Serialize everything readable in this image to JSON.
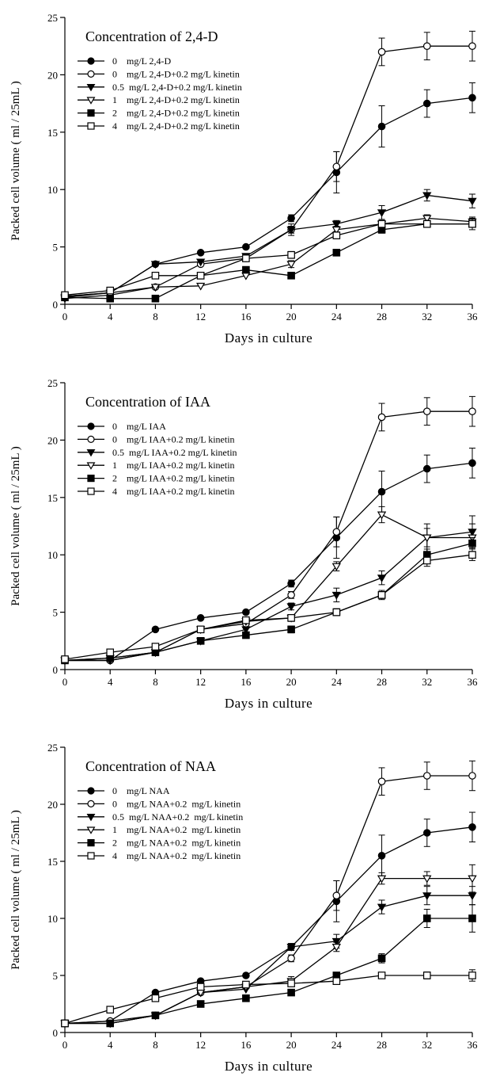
{
  "colors": {
    "ink": "#000000",
    "background": "#ffffff"
  },
  "chart_data": [
    {
      "type": "line",
      "title": "Concentration of 2,4-D",
      "xlabel": "Days in culture",
      "ylabel": "Packed cell volume ( ml / 25mL )",
      "xlim": [
        0,
        36
      ],
      "ylim": [
        0,
        25
      ],
      "xticks": [
        0,
        4,
        8,
        12,
        16,
        20,
        24,
        28,
        32,
        36
      ],
      "yticks": [
        0,
        5,
        10,
        15,
        20,
        25
      ],
      "grid": false,
      "legend_position": "top-left",
      "x": [
        0,
        4,
        8,
        12,
        16,
        20,
        24,
        28,
        32,
        36
      ],
      "series": [
        {
          "name": "0    mg/L 2,4-D",
          "marker": "circle-filled",
          "values": [
            0.7,
            1.0,
            3.5,
            4.5,
            5.0,
            7.5,
            11.5,
            15.5,
            17.5,
            18.0
          ],
          "errors": [
            0.2,
            0.2,
            0.2,
            0.2,
            0.2,
            0.3,
            1.8,
            1.8,
            1.2,
            1.3
          ]
        },
        {
          "name": "0    mg/L 2,4-D+0.2 mg/L kinetin",
          "marker": "circle-open",
          "values": [
            0.7,
            1.0,
            1.5,
            3.5,
            4.0,
            6.5,
            12.0,
            22.0,
            22.5,
            22.5
          ],
          "errors": [
            0.2,
            0.2,
            0.2,
            0.2,
            0.2,
            0.3,
            1.3,
            1.2,
            1.2,
            1.3
          ]
        },
        {
          "name": "0.5  mg/L 2,4-D+0.2 mg/L kinetin",
          "marker": "triangle-down-filled",
          "values": [
            0.6,
            1.0,
            3.5,
            3.7,
            4.2,
            6.5,
            7.0,
            8.0,
            9.5,
            9.0
          ],
          "errors": [
            0.2,
            0.2,
            0.2,
            0.2,
            0.2,
            0.5,
            0.3,
            0.6,
            0.5,
            0.6
          ]
        },
        {
          "name": "1    mg/L 2,4-D+0.2 mg/L kinetin",
          "marker": "triangle-down-open",
          "values": [
            0.5,
            0.8,
            1.5,
            1.6,
            2.5,
            3.5,
            6.5,
            7.0,
            7.5,
            7.2
          ],
          "errors": [
            0.2,
            0.2,
            0.2,
            0.2,
            0.2,
            0.3,
            0.3,
            0.3,
            0.3,
            0.4
          ]
        },
        {
          "name": "2    mg/L 2,4-D+0.2 mg/L kinetin",
          "marker": "square-filled",
          "values": [
            0.6,
            0.5,
            0.5,
            2.5,
            3.0,
            2.5,
            4.5,
            6.5,
            7.0,
            7.0
          ],
          "errors": [
            0.2,
            0.2,
            0.2,
            0.2,
            0.2,
            0.2,
            0.2,
            0.3,
            0.3,
            0.5
          ]
        },
        {
          "name": "4    mg/L 2,4-D+0.2 mg/L kinetin",
          "marker": "square-open",
          "values": [
            0.8,
            1.2,
            2.5,
            2.5,
            4.0,
            4.3,
            6.0,
            7.0,
            7.0,
            7.0
          ],
          "errors": [
            0.2,
            0.2,
            0.2,
            0.2,
            0.2,
            0.3,
            0.3,
            0.3,
            0.3,
            0.3
          ]
        }
      ]
    },
    {
      "type": "line",
      "title": "Concentration of IAA",
      "xlabel": "Days in culture",
      "ylabel": "Packed cell volume ( ml / 25mL )",
      "xlim": [
        0,
        36
      ],
      "ylim": [
        0,
        25
      ],
      "xticks": [
        0,
        4,
        8,
        12,
        16,
        20,
        24,
        28,
        32,
        36
      ],
      "yticks": [
        0,
        5,
        10,
        15,
        20,
        25
      ],
      "grid": false,
      "legend_position": "top-left",
      "x": [
        0,
        4,
        8,
        12,
        16,
        20,
        24,
        28,
        32,
        36
      ],
      "series": [
        {
          "name": "0    mg/L IAA",
          "marker": "circle-filled",
          "values": [
            0.8,
            0.8,
            3.5,
            4.5,
            5.0,
            7.5,
            11.5,
            15.5,
            17.5,
            18.0
          ],
          "errors": [
            0.2,
            0.2,
            0.2,
            0.2,
            0.2,
            0.3,
            1.8,
            1.8,
            1.2,
            1.3
          ]
        },
        {
          "name": "0    mg/L IAA+0.2 mg/L kinetin",
          "marker": "circle-open",
          "values": [
            0.8,
            0.8,
            1.5,
            3.5,
            4.0,
            6.5,
            12.0,
            22.0,
            22.5,
            22.5
          ],
          "errors": [
            0.2,
            0.2,
            0.2,
            0.2,
            0.2,
            0.3,
            1.3,
            1.2,
            1.2,
            1.3
          ]
        },
        {
          "name": "0.5  mg/L IAA+0.2 mg/L kinetin",
          "marker": "triangle-down-filled",
          "values": [
            0.8,
            0.8,
            1.5,
            2.5,
            3.5,
            5.5,
            6.5,
            8.0,
            11.5,
            12.0
          ],
          "errors": [
            0.2,
            0.2,
            0.2,
            0.2,
            0.2,
            0.3,
            0.6,
            0.6,
            0.8,
            1.4
          ]
        },
        {
          "name": "1    mg/L IAA+0.2 mg/L kinetin",
          "marker": "triangle-down-open",
          "values": [
            0.8,
            1.0,
            1.5,
            3.5,
            4.2,
            4.5,
            9.0,
            13.5,
            11.5,
            11.5
          ],
          "errors": [
            0.2,
            0.2,
            0.2,
            0.2,
            0.2,
            0.3,
            0.4,
            0.7,
            1.2,
            1.2
          ]
        },
        {
          "name": "2    mg/L IAA+0.2 mg/L kinetin",
          "marker": "square-filled",
          "values": [
            0.8,
            1.0,
            1.5,
            2.5,
            3.0,
            3.5,
            5.0,
            6.5,
            10.0,
            11.0
          ],
          "errors": [
            0.2,
            0.2,
            0.2,
            0.2,
            0.2,
            0.3,
            0.3,
            0.3,
            0.5,
            0.5
          ]
        },
        {
          "name": "4    mg/L IAA+0.2 mg/L kinetin",
          "marker": "square-open",
          "values": [
            0.9,
            1.5,
            2.0,
            3.5,
            4.3,
            4.5,
            5.0,
            6.5,
            9.5,
            10.0
          ],
          "errors": [
            0.2,
            0.2,
            0.2,
            0.2,
            0.2,
            0.2,
            0.2,
            0.4,
            0.5,
            0.5
          ]
        }
      ]
    },
    {
      "type": "line",
      "title": "Concentration of NAA",
      "xlabel": "Days in culture",
      "ylabel": "Packed cell volume ( ml / 25mL )",
      "xlim": [
        0,
        36
      ],
      "ylim": [
        0,
        25
      ],
      "xticks": [
        0,
        4,
        8,
        12,
        16,
        20,
        24,
        28,
        32,
        36
      ],
      "yticks": [
        0,
        5,
        10,
        15,
        20,
        25
      ],
      "grid": false,
      "legend_position": "top-left",
      "x": [
        0,
        4,
        8,
        12,
        16,
        20,
        24,
        28,
        32,
        36
      ],
      "series": [
        {
          "name": "0    mg/L NAA",
          "marker": "circle-filled",
          "values": [
            0.8,
            1.0,
            3.5,
            4.5,
            5.0,
            7.5,
            11.5,
            15.5,
            17.5,
            18.0
          ],
          "errors": [
            0.2,
            0.2,
            0.2,
            0.2,
            0.2,
            0.3,
            1.8,
            1.8,
            1.2,
            1.3
          ]
        },
        {
          "name": "0    mg/L NAA+0.2  mg/L kinetin",
          "marker": "circle-open",
          "values": [
            0.8,
            1.0,
            1.5,
            3.5,
            4.0,
            6.5,
            12.0,
            22.0,
            22.5,
            22.5
          ],
          "errors": [
            0.2,
            0.2,
            0.2,
            0.2,
            0.2,
            0.3,
            1.3,
            1.2,
            1.2,
            1.3
          ]
        },
        {
          "name": "0.5  mg/L NAA+0.2  mg/L kinetin",
          "marker": "triangle-down-filled",
          "values": [
            0.8,
            0.8,
            1.5,
            3.5,
            3.8,
            7.5,
            8.0,
            11.0,
            12.0,
            12.0
          ],
          "errors": [
            0.2,
            0.2,
            0.2,
            0.2,
            0.2,
            0.3,
            0.6,
            0.6,
            0.8,
            0.8
          ]
        },
        {
          "name": "1    mg/L NAA+0.2  mg/L kinetin",
          "marker": "triangle-down-open",
          "values": [
            0.8,
            0.8,
            1.5,
            3.5,
            4.0,
            4.5,
            7.5,
            13.5,
            13.5,
            13.5
          ],
          "errors": [
            0.2,
            0.2,
            0.2,
            0.2,
            0.2,
            0.4,
            0.4,
            0.5,
            0.6,
            1.2
          ]
        },
        {
          "name": "2    mg/L NAA+0.2  mg/L kinetin",
          "marker": "square-filled",
          "values": [
            0.8,
            0.8,
            1.5,
            2.5,
            3.0,
            3.5,
            5.0,
            6.5,
            10.0,
            10.0
          ],
          "errors": [
            0.2,
            0.2,
            0.2,
            0.2,
            0.2,
            0.2,
            0.2,
            0.4,
            0.8,
            1.2
          ]
        },
        {
          "name": "4    mg/L NAA+0.2  mg/L kinetin",
          "marker": "square-open",
          "values": [
            0.8,
            2.0,
            3.0,
            4.0,
            4.2,
            4.3,
            4.5,
            5.0,
            5.0,
            5.0
          ],
          "errors": [
            0.2,
            0.2,
            0.2,
            0.2,
            0.2,
            0.2,
            0.2,
            0.2,
            0.3,
            0.5
          ]
        }
      ]
    }
  ]
}
